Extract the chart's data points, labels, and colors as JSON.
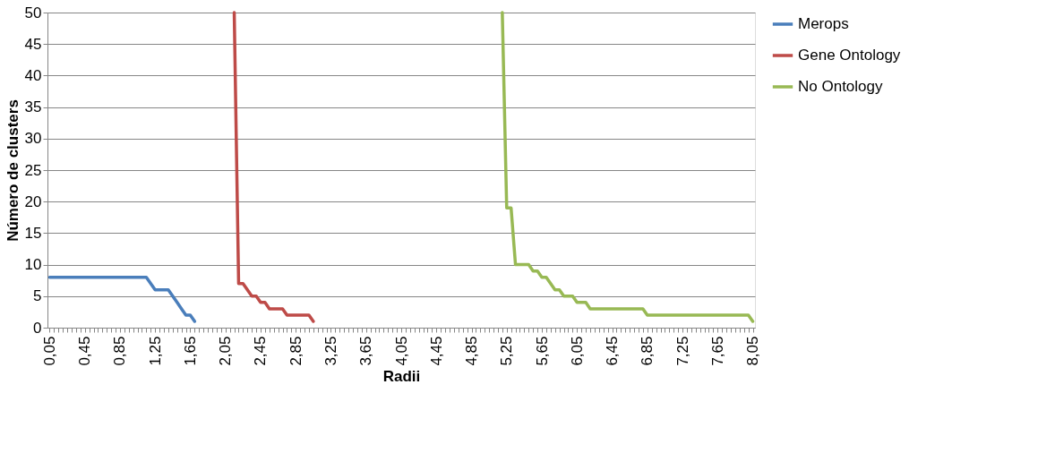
{
  "chart_data": {
    "type": "line",
    "xlabel": "Radii",
    "ylabel": "Número de clusters",
    "categories": [
      "0,05",
      null,
      null,
      null,
      null,
      null,
      null,
      null,
      "0,45",
      null,
      null,
      null,
      null,
      null,
      null,
      null,
      "0,85",
      null,
      null,
      null,
      null,
      null,
      null,
      null,
      "1,25",
      null,
      null,
      null,
      null,
      null,
      null,
      null,
      "1,65",
      null,
      null,
      null,
      null,
      null,
      null,
      null,
      "2,05",
      null,
      null,
      null,
      null,
      null,
      null,
      null,
      "2,45",
      null,
      null,
      null,
      null,
      null,
      null,
      null,
      "2,85",
      null,
      null,
      null,
      null,
      null,
      null,
      null,
      "3,25",
      null,
      null,
      null,
      null,
      null,
      null,
      null,
      "3,65",
      null,
      null,
      null,
      null,
      null,
      null,
      null,
      "4,05",
      null,
      null,
      null,
      null,
      null,
      null,
      null,
      "4,45",
      null,
      null,
      null,
      null,
      null,
      null,
      null,
      "4,85",
      null,
      null,
      null,
      null,
      null,
      null,
      null,
      "5,25",
      null,
      null,
      null,
      null,
      null,
      null,
      null,
      "5,65",
      null,
      null,
      null,
      null,
      null,
      null,
      null,
      "6,05",
      null,
      null,
      null,
      null,
      null,
      null,
      null,
      "6,45",
      null,
      null,
      null,
      null,
      null,
      null,
      null,
      "6,85",
      null,
      null,
      null,
      null,
      null,
      null,
      null,
      "7,25",
      null,
      null,
      null,
      null,
      null,
      null,
      null,
      "7,65",
      null,
      null,
      null,
      null,
      null,
      null,
      null,
      "8,05"
    ],
    "series": [
      {
        "name": "Merops",
        "color": "#4a7ebb",
        "values": [
          8,
          8,
          8,
          8,
          8,
          8,
          8,
          8,
          8,
          8,
          8,
          8,
          8,
          8,
          8,
          8,
          8,
          8,
          8,
          8,
          8,
          8,
          8,
          7,
          6,
          6,
          6,
          6,
          5,
          4,
          3,
          2,
          2,
          1,
          null,
          null,
          null,
          null,
          null,
          null,
          null,
          null,
          null,
          null,
          null,
          null,
          null,
          null,
          null,
          null,
          null,
          null,
          null,
          null,
          null,
          null,
          null,
          null,
          null,
          null,
          null,
          null,
          null,
          null,
          null,
          null,
          null,
          null,
          null,
          null,
          null,
          null,
          null,
          null,
          null,
          null,
          null,
          null,
          null,
          null,
          null,
          null,
          null,
          null,
          null,
          null,
          null,
          null,
          null,
          null,
          null,
          null,
          null,
          null,
          null,
          null,
          null,
          null,
          null,
          null,
          null,
          null,
          null,
          null,
          null,
          null,
          null,
          null,
          null,
          null,
          null,
          null,
          null,
          null,
          null,
          null,
          null,
          null,
          null,
          null,
          null,
          null,
          null,
          null,
          null,
          null,
          null,
          null,
          null,
          null,
          null,
          null,
          null,
          null,
          null,
          null,
          null,
          null,
          null,
          null,
          null,
          null,
          null,
          null,
          null,
          null,
          null,
          null,
          null,
          null,
          null,
          null,
          null,
          null,
          null,
          null,
          null,
          null,
          null,
          null,
          null
        ]
      },
      {
        "name": "Gene Ontology",
        "color": "#be4b48",
        "values": [
          null,
          null,
          null,
          null,
          null,
          null,
          null,
          null,
          null,
          null,
          null,
          null,
          null,
          null,
          null,
          null,
          null,
          null,
          null,
          null,
          null,
          null,
          null,
          null,
          null,
          null,
          null,
          null,
          null,
          null,
          null,
          null,
          null,
          null,
          null,
          null,
          null,
          null,
          null,
          null,
          null,
          null,
          50,
          7,
          7,
          6,
          5,
          5,
          4,
          4,
          3,
          3,
          3,
          3,
          2,
          2,
          2,
          2,
          2,
          2,
          1,
          null,
          null,
          null,
          null,
          null,
          null,
          null,
          null,
          null,
          null,
          null,
          null,
          null,
          null,
          null,
          null,
          null,
          null,
          null,
          null,
          null,
          null,
          null,
          null,
          null,
          null,
          null,
          null,
          null,
          null,
          null,
          null,
          null,
          null,
          null,
          null,
          null,
          null,
          null,
          null,
          null,
          null,
          null,
          null,
          null,
          null,
          null,
          null,
          null,
          null,
          null,
          null,
          null,
          null,
          null,
          null,
          null,
          null,
          null,
          null,
          null,
          null,
          null,
          null,
          null,
          null,
          null,
          null,
          null,
          null,
          null,
          null,
          null,
          null,
          null,
          null,
          null,
          null,
          null,
          null,
          null,
          null,
          null,
          null,
          null,
          null,
          null,
          null,
          null,
          null,
          null,
          null,
          null,
          null,
          null,
          null,
          null,
          null,
          null,
          null
        ]
      },
      {
        "name": "No Ontology",
        "color": "#98b954",
        "values": [
          null,
          null,
          null,
          null,
          null,
          null,
          null,
          null,
          null,
          null,
          null,
          null,
          null,
          null,
          null,
          null,
          null,
          null,
          null,
          null,
          null,
          null,
          null,
          null,
          null,
          null,
          null,
          null,
          null,
          null,
          null,
          null,
          null,
          null,
          null,
          null,
          null,
          null,
          null,
          null,
          null,
          null,
          null,
          null,
          null,
          null,
          null,
          null,
          null,
          null,
          null,
          null,
          null,
          null,
          null,
          null,
          null,
          null,
          null,
          null,
          null,
          null,
          null,
          null,
          null,
          null,
          null,
          null,
          null,
          null,
          null,
          null,
          null,
          null,
          null,
          null,
          null,
          null,
          null,
          null,
          null,
          null,
          null,
          null,
          null,
          null,
          null,
          null,
          null,
          null,
          null,
          null,
          null,
          null,
          null,
          null,
          null,
          null,
          null,
          null,
          null,
          null,
          null,
          50,
          19,
          19,
          10,
          10,
          10,
          10,
          9,
          9,
          8,
          8,
          7,
          6,
          6,
          5,
          5,
          5,
          4,
          4,
          4,
          3,
          3,
          3,
          3,
          3,
          3,
          3,
          3,
          3,
          3,
          3,
          3,
          3,
          2,
          2,
          2,
          2,
          2,
          2,
          2,
          2,
          2,
          2,
          2,
          2,
          2,
          2,
          2,
          2,
          2,
          2,
          2,
          2,
          2,
          2,
          2,
          2,
          1
        ]
      }
    ],
    "ylim": [
      0,
      50
    ],
    "yticks": [
      0,
      5,
      10,
      15,
      20,
      25,
      30,
      35,
      40,
      45,
      50
    ],
    "grid": "y",
    "legend": "right",
    "marker": "none",
    "line_style": "solid"
  }
}
